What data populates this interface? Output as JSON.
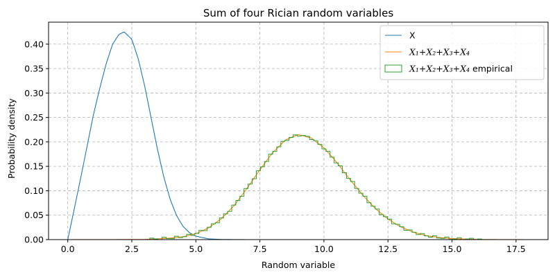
{
  "chart_data": {
    "type": "line",
    "title": "Sum of four Rician random variables",
    "xlabel": "Random variable",
    "ylabel": "Probability density",
    "xlim": [
      -0.75,
      18.75
    ],
    "ylim": [
      0,
      0.445
    ],
    "xticks": [
      0.0,
      2.5,
      5.0,
      7.5,
      10.0,
      12.5,
      15.0,
      17.5
    ],
    "xtick_labels": [
      "0.0",
      "2.5",
      "5.0",
      "7.5",
      "10.0",
      "12.5",
      "15.0",
      "17.5"
    ],
    "yticks": [
      0.0,
      0.05,
      0.1,
      0.15,
      0.2,
      0.25,
      0.3,
      0.35,
      0.4
    ],
    "ytick_labels": [
      "0.00",
      "0.05",
      "0.10",
      "0.15",
      "0.20",
      "0.25",
      "0.30",
      "0.35",
      "0.40"
    ],
    "grid": true,
    "legend_position": "upper-right",
    "series": [
      {
        "name": "X",
        "kind": "line",
        "color": "#1f77b4",
        "x": [
          0.0,
          0.25,
          0.5,
          0.75,
          1.0,
          1.25,
          1.5,
          1.75,
          2.0,
          2.2,
          2.5,
          2.75,
          3.0,
          3.25,
          3.5,
          3.75,
          4.0,
          4.25,
          4.5,
          4.75,
          5.0,
          5.5,
          6.0,
          7.0,
          18.0
        ],
        "y": [
          0.0,
          0.062,
          0.125,
          0.19,
          0.255,
          0.31,
          0.36,
          0.4,
          0.42,
          0.425,
          0.41,
          0.37,
          0.315,
          0.25,
          0.185,
          0.128,
          0.082,
          0.049,
          0.027,
          0.014,
          0.007,
          0.0015,
          0.0003,
          0.0,
          0.0
        ]
      },
      {
        "name": "X_1+X_2+X_3+X_4",
        "kind": "line",
        "color": "#ff7f0e",
        "x": [
          0.0,
          3.0,
          4.0,
          4.5,
          5.0,
          5.5,
          6.0,
          6.5,
          7.0,
          7.5,
          8.0,
          8.5,
          9.0,
          9.5,
          10.0,
          10.5,
          11.0,
          11.5,
          12.0,
          12.5,
          13.0,
          13.5,
          14.0,
          14.5,
          15.0,
          16.0,
          17.0,
          18.0
        ],
        "y": [
          0.0,
          0.0003,
          0.003,
          0.006,
          0.012,
          0.024,
          0.043,
          0.07,
          0.105,
          0.143,
          0.178,
          0.204,
          0.215,
          0.208,
          0.188,
          0.158,
          0.124,
          0.092,
          0.064,
          0.042,
          0.026,
          0.015,
          0.008,
          0.0042,
          0.002,
          0.0004,
          0.0001,
          0.0
        ]
      },
      {
        "name": "X_1+X_2+X_3+X_4 empirical",
        "kind": "step",
        "color": "#2ca02c",
        "bin_width": 0.16,
        "bin_start": 3.2,
        "bin_end": 16.16
      }
    ],
    "legend": [
      {
        "label_plain": "X",
        "label_math": ""
      },
      {
        "label_plain": "",
        "label_math": "X₁+X₂+X₃+X₄"
      },
      {
        "label_plain": " empirical",
        "label_math": "X₁+X₂+X₃+X₄"
      }
    ]
  }
}
